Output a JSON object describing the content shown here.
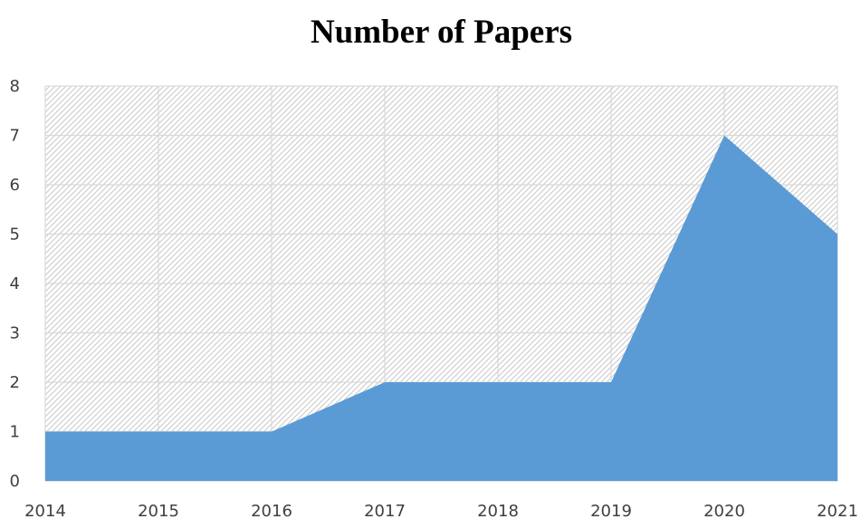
{
  "chart_data": {
    "type": "area",
    "title": "Number of Papers",
    "xlabel": "",
    "ylabel": "",
    "x": [
      "2014",
      "2015",
      "2016",
      "2017",
      "2018",
      "2019",
      "2020",
      "2021"
    ],
    "series": [
      {
        "values": [
          1,
          1,
          1,
          2,
          2,
          2,
          7,
          5
        ]
      }
    ],
    "ylim": [
      0,
      8
    ],
    "yticks": [
      "0",
      "1",
      "2",
      "3",
      "4",
      "5",
      "6",
      "7",
      "8"
    ],
    "grid": true,
    "legend": "none",
    "colors": {
      "area": "#5b9bd5",
      "grid": "#d9d9d9",
      "hatch": "#c8c8c8"
    }
  }
}
